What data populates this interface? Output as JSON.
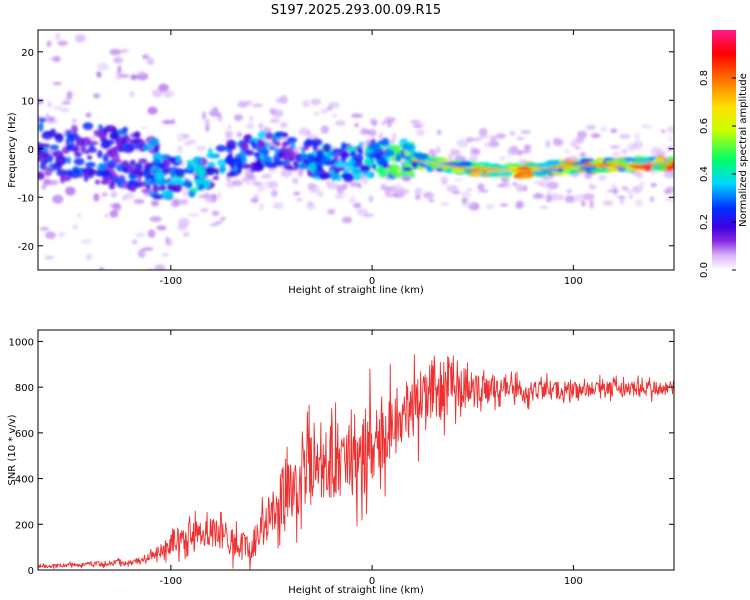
{
  "figure": {
    "title": "S197.2025.293.00.09.R15"
  },
  "chart_data": [
    {
      "type": "heatmap",
      "title": "",
      "xlabel": "Height of straight line (km)",
      "ylabel": "Frequency (Hz)",
      "xlim": [
        -166,
        150
      ],
      "ylim": [
        -25,
        24.5
      ],
      "xticks": [
        -100,
        0,
        100
      ],
      "xtick_labels": [
        "-100",
        "0",
        "100"
      ],
      "yticks": [
        -20,
        -10,
        0,
        10,
        20
      ],
      "ytick_labels": [
        "-20",
        "-10",
        "0",
        "10",
        "20"
      ],
      "colorbar": {
        "label": "Normalized spectral amplitude",
        "range": [
          0,
          1
        ],
        "ticks": [
          0,
          0.2,
          0.4,
          0.6,
          0.8
        ],
        "tick_labels": [
          "0.0",
          "0.2",
          "0.4",
          "0.6",
          "0.8"
        ],
        "colors": [
          "#ffffff",
          "#d8b4f8",
          "#8a2be2",
          "#3a00e0",
          "#0033ff",
          "#00d8ff",
          "#00ff6a",
          "#c8ff00",
          "#ffe000",
          "#ff6a00",
          "#ff0000",
          "#ff1a8c"
        ]
      },
      "ridge": {
        "x": [
          -160,
          -140,
          -120,
          -105,
          -90,
          -75,
          -60,
          -45,
          -30,
          -15,
          0,
          15,
          30,
          45,
          60,
          75,
          90,
          105,
          120,
          140,
          150
        ],
        "frequency": [
          0,
          -1,
          -2,
          -4.5,
          -6,
          -3,
          -1,
          0,
          -2,
          -3,
          -2,
          -2,
          -3,
          -4,
          -4.5,
          -4.5,
          -4,
          -3.5,
          -3.5,
          -3,
          -3
        ],
        "amplitude": [
          0.3,
          0.3,
          0.25,
          0.35,
          0.4,
          0.35,
          0.35,
          0.3,
          0.4,
          0.35,
          0.4,
          0.55,
          0.6,
          0.7,
          0.8,
          0.85,
          0.7,
          0.75,
          0.8,
          0.9,
          0.9
        ]
      }
    },
    {
      "type": "line",
      "title": "",
      "xlabel": "Height of straight line (km)",
      "ylabel": "SNR (10 * v/v)",
      "xlim": [
        -166,
        150
      ],
      "ylim": [
        0,
        1050
      ],
      "xticks": [
        -100,
        0,
        100
      ],
      "xtick_labels": [
        "-100",
        "0",
        "100"
      ],
      "yticks": [
        0,
        200,
        400,
        600,
        800,
        1000
      ],
      "ytick_labels": [
        "0",
        "200",
        "400",
        "600",
        "800",
        "1000"
      ],
      "series": [
        {
          "name": "SNR",
          "color": "#ee3030",
          "envelope": {
            "x": [
              -166,
              -130,
              -115,
              -105,
              -100,
              -90,
              -80,
              -70,
              -60,
              -50,
              -40,
              -30,
              -20,
              -10,
              0,
              10,
              20,
              30,
              40,
              50,
              60,
              80,
              100,
              120,
              150
            ],
            "mean": [
              15,
              30,
              40,
              80,
              120,
              150,
              170,
              120,
              90,
              250,
              380,
              430,
              480,
              500,
              560,
              650,
              700,
              760,
              820,
              790,
              790,
              780,
              790,
              790,
              795
            ],
            "spread": [
              12,
              20,
              25,
              60,
              90,
              110,
              120,
              110,
              120,
              200,
              280,
              300,
              320,
              320,
              330,
              300,
              280,
              260,
              220,
              120,
              90,
              80,
              70,
              60,
              55
            ]
          }
        }
      ]
    }
  ]
}
